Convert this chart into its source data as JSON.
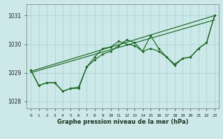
{
  "title": "Graphe pression niveau de la mer (hPa)",
  "background_color": "#cce8e8",
  "grid_color": "#aad4d4",
  "line_color": "#1a6620",
  "ylim": [
    1027.75,
    1031.4
  ],
  "xlim": [
    -0.5,
    23.5
  ],
  "yticks": [
    1028,
    1029,
    1030,
    1031
  ],
  "xtick_labels": [
    "0",
    "1",
    "2",
    "3",
    "4",
    "5",
    "6",
    "7",
    "8",
    "9",
    "10",
    "11",
    "12",
    "13",
    "14",
    "15",
    "16",
    "17",
    "18",
    "19",
    "20",
    "21",
    "22",
    "23"
  ],
  "trend1": {
    "x": [
      0,
      23
    ],
    "y": [
      1029.05,
      1031.0
    ]
  },
  "trend2": {
    "x": [
      0,
      23
    ],
    "y": [
      1029.0,
      1030.85
    ]
  },
  "jagged1_y": [
    1029.1,
    1028.55,
    1028.65,
    1028.65,
    1028.35,
    1028.45,
    1028.45,
    1029.2,
    1029.55,
    1029.85,
    1029.9,
    1030.1,
    1030.0,
    1029.95,
    1029.75,
    1030.3,
    1029.85,
    1029.55,
    1029.25,
    1029.5,
    1029.55,
    1029.85,
    1030.05,
    1031.0
  ],
  "jagged2_y": [
    1029.1,
    1028.55,
    1028.65,
    1028.65,
    1028.35,
    1028.45,
    1028.5,
    1029.2,
    1029.45,
    1029.65,
    1029.75,
    1029.95,
    1030.15,
    1030.05,
    1029.75,
    1029.85,
    1029.75,
    1029.55,
    1029.3,
    1029.5,
    1029.55,
    1029.85,
    1030.05,
    1031.0
  ]
}
